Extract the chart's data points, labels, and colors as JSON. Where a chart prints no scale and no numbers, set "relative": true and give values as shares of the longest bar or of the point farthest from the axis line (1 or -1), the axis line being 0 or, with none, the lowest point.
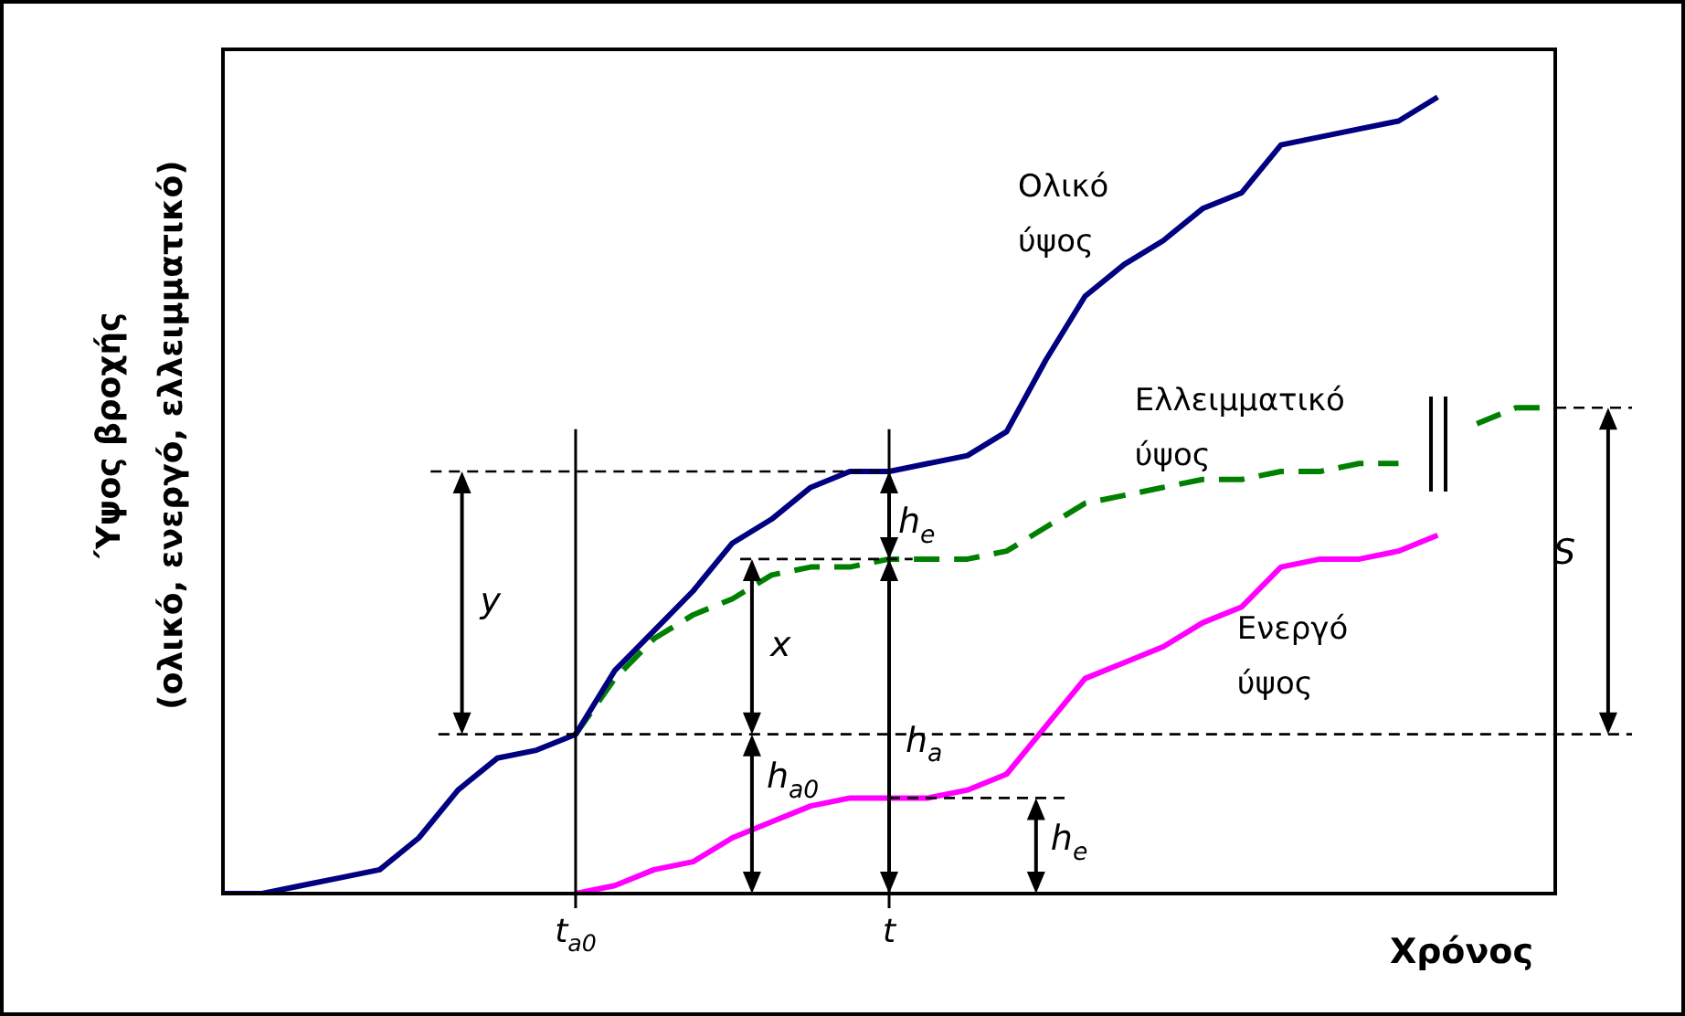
{
  "chart_data": {
    "type": "line",
    "relative": true,
    "xlabel": "Χρόνος",
    "ylabel": "Ύψος βροχής\n(ολικό, ενεργό, ελλειμματικό)",
    "categories": [
      null,
      null,
      null,
      null,
      null,
      null,
      null,
      null,
      null,
      "t$_{a0}$",
      null,
      null,
      null,
      null,
      null,
      null,
      null,
      "t",
      null,
      null,
      null,
      null,
      null,
      null,
      null,
      null,
      null,
      null,
      null,
      null,
      null,
      null,
      null,
      null,
      null
    ],
    "series": [
      {
        "name": "Ολικό ύψος",
        "color": "#000080",
        "values": [
          0,
          0,
          0.01,
          0.02,
          0.03,
          0.07,
          0.13,
          0.17,
          0.18,
          0.2,
          0.28,
          0.33,
          0.38,
          0.44,
          0.47,
          0.51,
          0.53,
          0.53,
          0.54,
          0.55,
          0.58,
          0.67,
          0.75,
          0.79,
          0.82,
          0.86,
          0.88,
          0.94,
          0.95,
          0.96,
          0.97,
          1,
          null,
          null,
          null
        ]
      },
      {
        "name": "Ελλειμματικό ύψος",
        "color": "#008000",
        "line_style": "dashed",
        "values": [
          null,
          null,
          null,
          null,
          null,
          null,
          null,
          null,
          null,
          0.2,
          0.27,
          0.32,
          0.35,
          0.37,
          0.4,
          0.41,
          0.41,
          0.42,
          0.42,
          0.42,
          0.43,
          0.46,
          0.49,
          0.5,
          0.51,
          0.52,
          0.52,
          0.53,
          0.53,
          0.54,
          0.54,
          null,
          0.59,
          0.61,
          0.61
        ]
      },
      {
        "name": "Ενεργό ύψος",
        "color": "#ff00ff",
        "values": [
          null,
          null,
          null,
          null,
          null,
          null,
          null,
          null,
          null,
          0,
          0.01,
          0.03,
          0.04,
          0.07,
          0.09,
          0.11,
          0.12,
          0.12,
          0.12,
          0.13,
          0.15,
          0.21,
          0.27,
          0.29,
          0.31,
          0.34,
          0.36,
          0.41,
          0.42,
          0.42,
          0.43,
          0.45,
          null,
          null,
          null
        ]
      }
    ],
    "ref_lines": [
      {
        "axis": "x",
        "value": "t$_{a0}$",
        "color": "#000000"
      },
      {
        "axis": "x",
        "value": "t",
        "color": "#000000"
      },
      {
        "axis": "y",
        "value": 0.2,
        "color": "#000000",
        "line_style": "dashed"
      }
    ],
    "annotations": [
      "y",
      "x",
      "h$_{e}$",
      "h$_{a0}$",
      "h$_{a}$",
      "h$_{e}$",
      "S"
    ]
  }
}
